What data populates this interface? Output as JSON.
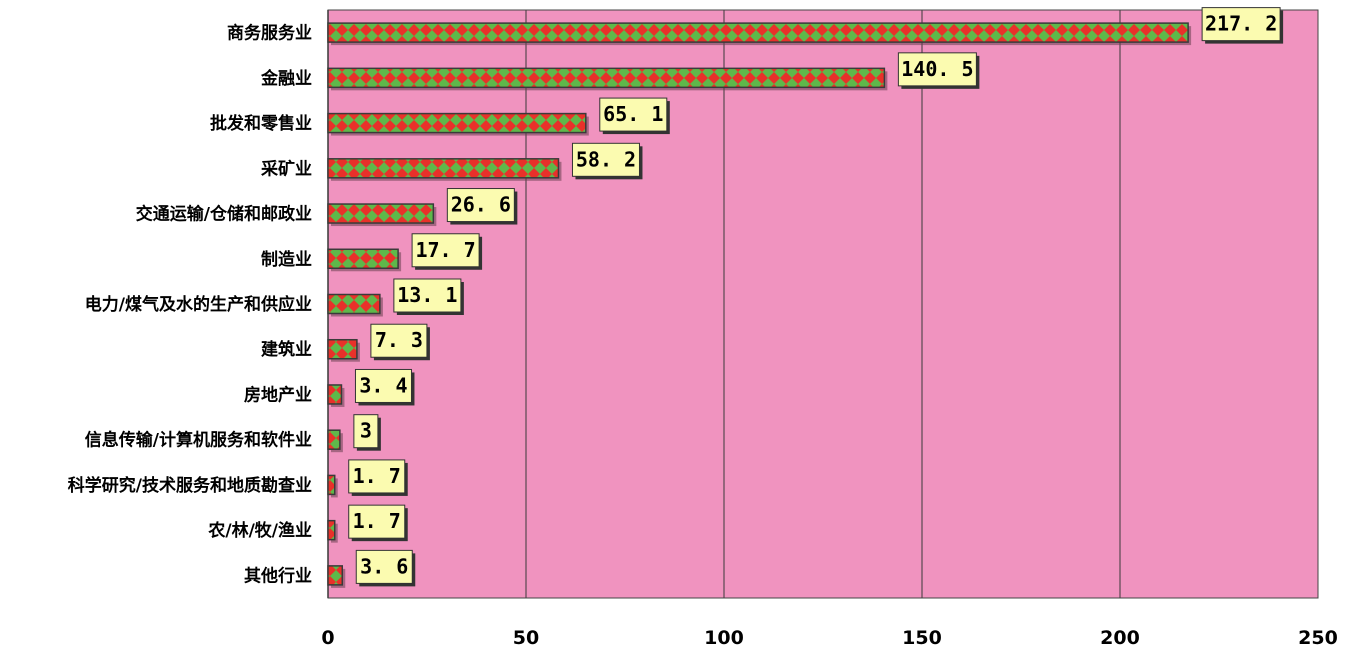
{
  "chart_data": {
    "type": "bar",
    "orientation": "horizontal",
    "title": "",
    "xlabel": "",
    "ylabel": "",
    "categories": [
      "商务服务业",
      "金融业",
      "批发和零售业",
      "采矿业",
      "交通运输/仓储和邮政业",
      "制造业",
      "电力/煤气及水的生产和供应业",
      "建筑业",
      "房地产业",
      "信息传输/计算机服务和软件业",
      "科学研究/技术服务和地质勘查业",
      "农/林/牧/渔业",
      "其他行业"
    ],
    "values": [
      217.2,
      140.5,
      65.1,
      58.2,
      26.6,
      17.7,
      13.1,
      7.3,
      3.4,
      3,
      1.7,
      1.7,
      3.6
    ],
    "data_labels": [
      "217. 2",
      "140. 5",
      "65. 1",
      "58. 2",
      "26. 6",
      "17. 7",
      "13. 1",
      "7. 3",
      "3. 4",
      "3",
      "1. 7",
      "1. 7",
      "3. 6"
    ],
    "xlim": [
      0,
      250
    ],
    "xticks": [
      0,
      50,
      100,
      150,
      200,
      250
    ],
    "xtick_labels": [
      "0",
      "50",
      "100",
      "150",
      "200",
      "250"
    ],
    "grid": "vertical",
    "legend": "none",
    "colors": {
      "plot_background": "#f093bf",
      "bar_red": "#e8312a",
      "bar_green": "#5fb84a",
      "bar_outline": "#3a3a3a",
      "label_box": "#fbfbb0",
      "gridline": "#3a3a3a"
    }
  }
}
